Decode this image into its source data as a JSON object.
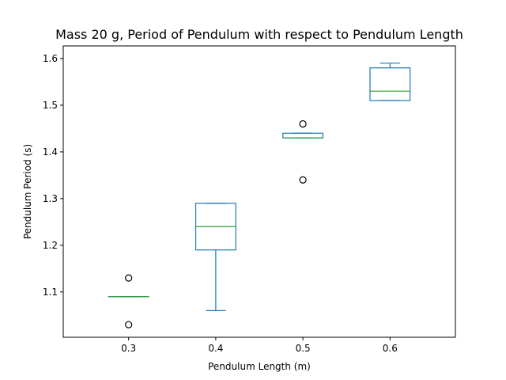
{
  "chart_data": {
    "type": "box",
    "title": "Mass 20 g, Period of Pendulum with respect to Pendulum Length",
    "xlabel": "Pendulum Length (m)",
    "ylabel": "Pendulum Period (s)",
    "categories": [
      "0.3",
      "0.4",
      "0.5",
      "0.6"
    ],
    "ylim": [
      1.003,
      1.627
    ],
    "yticks": [
      1.1,
      1.2,
      1.3,
      1.4,
      1.5,
      1.6
    ],
    "ytick_labels": [
      "1.1",
      "1.2",
      "1.3",
      "1.4",
      "1.5",
      "1.6"
    ],
    "boxes": [
      {
        "category": "0.3",
        "whislo": 1.09,
        "q1": 1.09,
        "median": 1.09,
        "q3": 1.09,
        "whishi": 1.09,
        "fliers": [
          1.13,
          1.03
        ]
      },
      {
        "category": "0.4",
        "whislo": 1.06,
        "q1": 1.19,
        "median": 1.24,
        "q3": 1.29,
        "whishi": 1.29,
        "fliers": []
      },
      {
        "category": "0.5",
        "whislo": 1.43,
        "q1": 1.43,
        "median": 1.43,
        "q3": 1.44,
        "whishi": 1.44,
        "fliers": [
          1.46,
          1.34
        ]
      },
      {
        "category": "0.6",
        "whislo": 1.51,
        "q1": 1.51,
        "median": 1.53,
        "q3": 1.58,
        "whishi": 1.59,
        "fliers": []
      }
    ],
    "colors": {
      "box": "#1f77b4",
      "median": "#2ca02c",
      "flier": "#000000"
    },
    "grid": false,
    "legend": "none"
  }
}
